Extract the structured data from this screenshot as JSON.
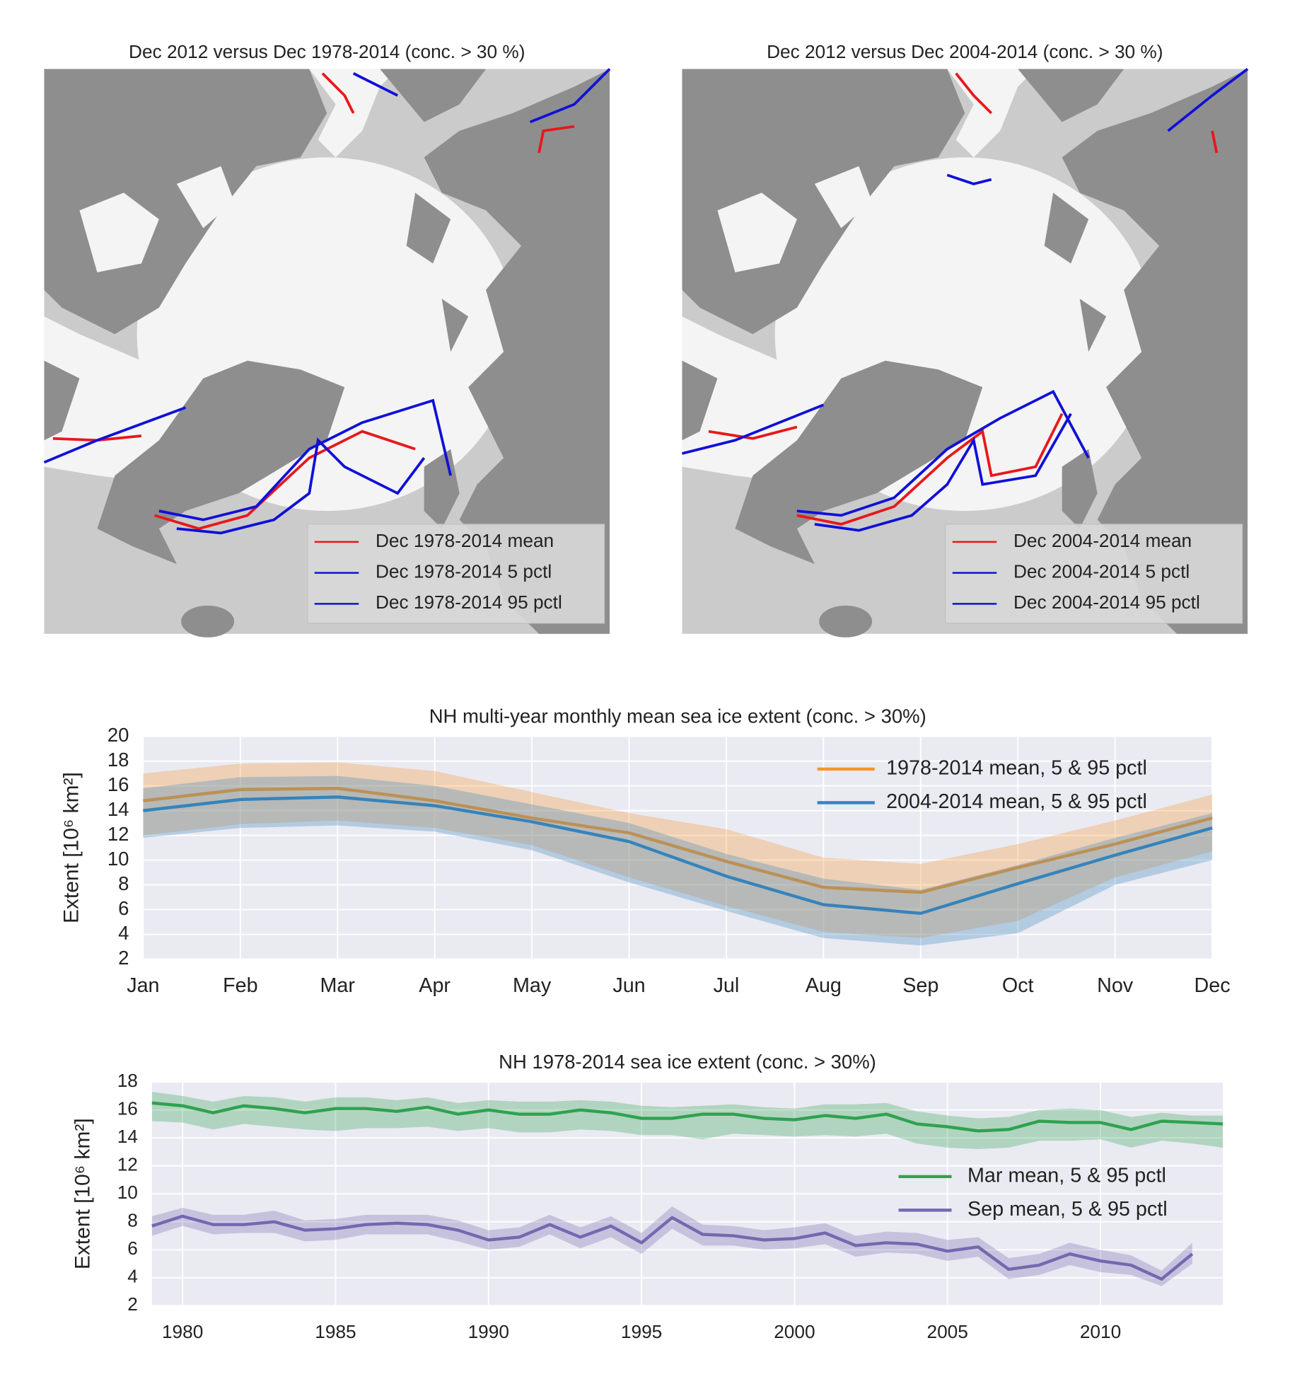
{
  "maps": [
    {
      "title": "Dec 2012 versus Dec 1978-2014 (conc. > 30 %)",
      "legend": [
        {
          "label": "Dec 1978-2014 mean",
          "color": "#e8171b"
        },
        {
          "label": "Dec 1978-2014 5 pctl",
          "color": "#1010d8"
        },
        {
          "label": "Dec 1978-2014 95 pctl",
          "color": "#1010d8"
        }
      ]
    },
    {
      "title": "Dec 2012 versus Dec 2004-2014 (conc. > 30 %)",
      "legend": [
        {
          "label": "Dec 2004-2014 mean",
          "color": "#e8171b"
        },
        {
          "label": "Dec 2004-2014 5 pctl",
          "color": "#1010d8"
        },
        {
          "label": "Dec 2004-2014 95 pctl",
          "color": "#1010d8"
        }
      ]
    }
  ],
  "chart_data": [
    {
      "type": "line",
      "title": "NH multi-year monthly mean sea ice extent (conc. > 30%)",
      "ylabel": "Extent [10⁶ km²]",
      "categories": [
        "Jan",
        "Feb",
        "Mar",
        "Apr",
        "May",
        "Jun",
        "Jul",
        "Aug",
        "Sep",
        "Oct",
        "Nov",
        "Dec"
      ],
      "ylim": [
        2,
        20
      ],
      "yticks": [
        2,
        4,
        6,
        8,
        10,
        12,
        14,
        16,
        18,
        20
      ],
      "grid": true,
      "legend": "upper right",
      "series": [
        {
          "name": "1978-2014 mean, 5 & 95 pctl",
          "color": "#f7962a",
          "values": [
            14.8,
            15.7,
            15.8,
            14.8,
            13.4,
            12.2,
            9.9,
            7.8,
            7.4,
            9.4,
            11.3,
            13.4
          ],
          "lower": [
            12.0,
            12.9,
            13.2,
            12.6,
            11.2,
            8.6,
            6.3,
            4.2,
            3.7,
            5.1,
            8.6,
            10.7
          ],
          "upper": [
            17.0,
            17.8,
            17.9,
            17.2,
            15.5,
            13.8,
            12.5,
            10.2,
            9.7,
            11.3,
            13.2,
            15.3
          ]
        },
        {
          "name": "2004-2014 mean, 5 & 95 pctl",
          "color": "#3583bb",
          "values": [
            14.0,
            14.9,
            15.1,
            14.4,
            13.1,
            11.5,
            8.7,
            6.4,
            5.7,
            8.1,
            10.4,
            12.6
          ],
          "lower": [
            11.8,
            12.6,
            12.8,
            12.3,
            10.8,
            8.2,
            5.9,
            3.7,
            3.1,
            4.1,
            8.0,
            10.0
          ],
          "upper": [
            15.8,
            16.7,
            16.8,
            16.0,
            14.5,
            13.0,
            10.5,
            8.5,
            7.6,
            9.6,
            11.8,
            13.8
          ]
        }
      ]
    },
    {
      "type": "line",
      "title": "NH 1978-2014 sea ice extent (conc. > 30%)",
      "ylabel": "Extent [10⁶ km²]",
      "x": [
        1979,
        1980,
        1981,
        1982,
        1983,
        1984,
        1985,
        1986,
        1987,
        1988,
        1989,
        1990,
        1991,
        1992,
        1993,
        1994,
        1995,
        1996,
        1997,
        1998,
        1999,
        2000,
        2001,
        2002,
        2003,
        2004,
        2005,
        2006,
        2007,
        2008,
        2009,
        2010,
        2011,
        2012,
        2013,
        2014
      ],
      "xlim": [
        1979,
        2014
      ],
      "xticks": [
        1980,
        1985,
        1990,
        1995,
        2000,
        2005,
        2010
      ],
      "ylim": [
        2,
        18
      ],
      "yticks": [
        2,
        4,
        6,
        8,
        10,
        12,
        14,
        16,
        18
      ],
      "grid": true,
      "legend": "center right",
      "series": [
        {
          "name": "Mar mean, 5 & 95 pctl",
          "color": "#2fa24f",
          "values": [
            16.5,
            16.3,
            15.8,
            16.3,
            16.1,
            15.8,
            16.1,
            16.1,
            15.9,
            16.2,
            15.7,
            16.0,
            15.7,
            15.7,
            16.0,
            15.8,
            15.4,
            15.4,
            15.7,
            15.7,
            15.4,
            15.3,
            15.6,
            15.4,
            15.7,
            15.0,
            14.8,
            14.5,
            14.6,
            15.2,
            15.1,
            15.1,
            14.6,
            15.2,
            15.1,
            15.0
          ],
          "lower": [
            15.2,
            15.1,
            14.6,
            15.0,
            14.8,
            14.6,
            14.5,
            14.7,
            14.7,
            14.8,
            14.5,
            14.7,
            14.4,
            14.4,
            14.6,
            14.5,
            14.2,
            14.2,
            13.9,
            14.3,
            14.2,
            14.1,
            14.2,
            14.1,
            14.3,
            13.6,
            13.3,
            13.2,
            13.3,
            13.8,
            13.8,
            13.9,
            13.3,
            13.8,
            13.6,
            13.3
          ],
          "upper": [
            17.3,
            17.0,
            16.6,
            17.0,
            16.9,
            16.6,
            16.9,
            16.9,
            16.7,
            16.9,
            16.5,
            16.7,
            16.6,
            16.6,
            16.7,
            16.6,
            16.3,
            16.2,
            16.3,
            16.4,
            16.2,
            16.1,
            16.4,
            16.4,
            16.5,
            15.9,
            15.6,
            15.4,
            15.5,
            16.0,
            16.1,
            16.0,
            15.5,
            15.8,
            15.6,
            15.6
          ]
        },
        {
          "name": "Sep mean, 5 & 95 pctl",
          "color": "#7468b0",
          "values": [
            7.7,
            8.4,
            7.8,
            7.8,
            8.0,
            7.4,
            7.5,
            7.8,
            7.9,
            7.8,
            7.4,
            6.7,
            6.9,
            7.8,
            6.9,
            7.7,
            6.5,
            8.3,
            7.1,
            7.0,
            6.7,
            6.8,
            7.2,
            6.3,
            6.5,
            6.4,
            5.9,
            6.2,
            4.6,
            4.9,
            5.7,
            5.2,
            4.9,
            3.9,
            5.7,
            null
          ],
          "lower": [
            7.0,
            7.7,
            7.1,
            7.2,
            7.2,
            6.6,
            6.7,
            7.1,
            7.1,
            7.1,
            6.6,
            6.0,
            6.2,
            7.1,
            6.1,
            6.9,
            5.7,
            7.5,
            6.3,
            6.3,
            6.0,
            6.1,
            6.4,
            5.5,
            5.8,
            5.7,
            5.2,
            5.5,
            3.9,
            4.2,
            4.9,
            4.4,
            4.2,
            3.4,
            5.0,
            null
          ],
          "upper": [
            8.4,
            9.0,
            8.5,
            8.5,
            8.8,
            8.1,
            8.2,
            8.5,
            8.5,
            8.5,
            8.1,
            7.4,
            7.6,
            8.5,
            7.6,
            8.4,
            7.2,
            9.1,
            7.8,
            7.7,
            7.4,
            7.6,
            7.9,
            7.0,
            7.3,
            7.2,
            6.7,
            6.9,
            5.4,
            5.7,
            6.5,
            6.0,
            5.6,
            4.5,
            6.5,
            null
          ]
        }
      ]
    }
  ]
}
